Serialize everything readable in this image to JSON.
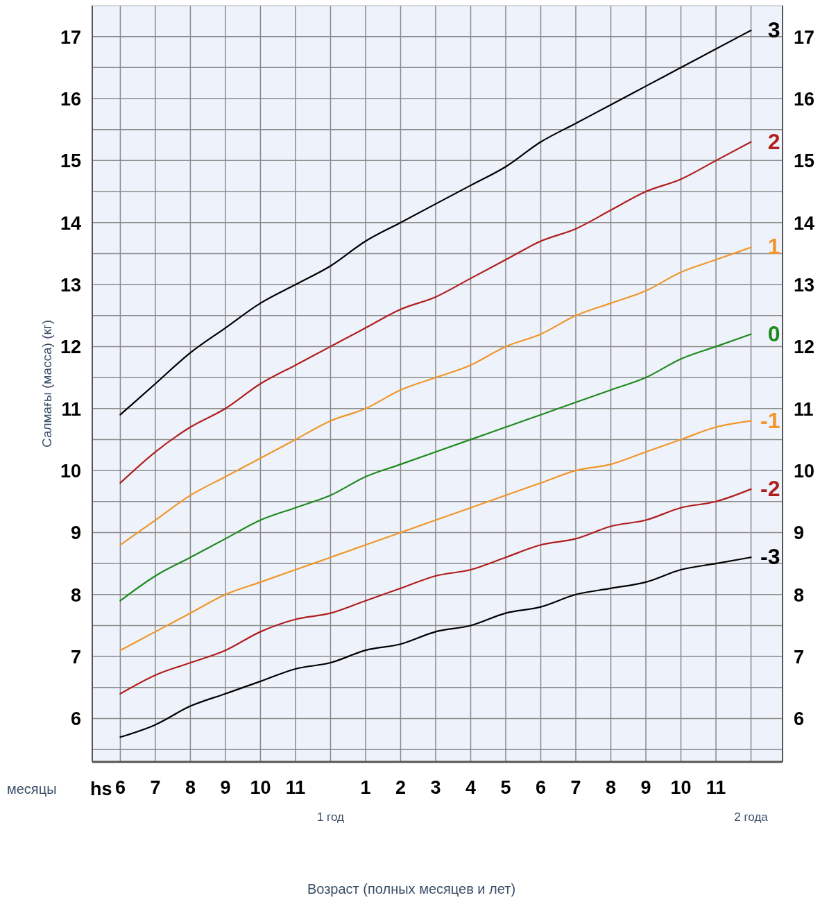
{
  "chart_data": {
    "type": "line",
    "ylabel": "Салмағы (масса) (кг)",
    "annotations": [
      "месяцы",
      "hs",
      "1 год",
      "2 года",
      "Возраст (полных месяцев и лет)"
    ],
    "categories": [
      "6",
      "7",
      "8",
      "9",
      "10",
      "11",
      null,
      "1",
      "2",
      "3",
      "4",
      "5",
      "6",
      "7",
      "8",
      "9",
      "10",
      "11",
      null
    ],
    "ylim": [
      5.3,
      17.5
    ],
    "yticks": [
      {
        "value": 5.5,
        "label": null
      },
      6,
      {
        "value": 6.5,
        "label": null
      },
      7,
      {
        "value": 7.5,
        "label": null
      },
      8,
      {
        "value": 8.5,
        "label": null
      },
      9,
      {
        "value": 9.5,
        "label": null
      },
      10,
      {
        "value": 10.5,
        "label": null
      },
      11,
      {
        "value": 11.5,
        "label": null
      },
      12,
      {
        "value": 12.5,
        "label": null
      },
      13,
      {
        "value": 13.5,
        "label": null
      },
      14,
      {
        "value": 14.5,
        "label": null
      },
      15,
      {
        "value": 15.5,
        "label": null
      },
      16,
      {
        "value": 16.5,
        "label": null
      },
      17
    ],
    "y2lim": [
      5.3,
      17.5
    ],
    "y2ticks": [
      6,
      7,
      8,
      9,
      10,
      11,
      12,
      13,
      14,
      15,
      16,
      17
    ],
    "grid": true,
    "marker": "none",
    "line_style": "solid",
    "series": [
      {
        "name": "3",
        "color": "#000000",
        "values": [
          10.9,
          11.4,
          11.9,
          12.3,
          12.7,
          13.0,
          13.3,
          13.7,
          14.0,
          14.3,
          14.6,
          14.9,
          15.3,
          15.6,
          15.9,
          16.2,
          16.5,
          16.8,
          17.1
        ]
      },
      {
        "name": "2",
        "color": "#b01e1e",
        "values": [
          9.8,
          10.3,
          10.7,
          11.0,
          11.4,
          11.7,
          12.0,
          12.3,
          12.6,
          12.8,
          13.1,
          13.4,
          13.7,
          13.9,
          14.2,
          14.5,
          14.7,
          15.0,
          15.3
        ]
      },
      {
        "name": "1",
        "color": "#f0962a",
        "values": [
          8.8,
          9.2,
          9.6,
          9.9,
          10.2,
          10.5,
          10.8,
          11.0,
          11.3,
          11.5,
          11.7,
          12.0,
          12.2,
          12.5,
          12.7,
          12.9,
          13.2,
          13.4,
          13.6
        ]
      },
      {
        "name": "0",
        "color": "#1e8a1e",
        "values": [
          7.9,
          8.3,
          8.6,
          8.9,
          9.2,
          9.4,
          9.6,
          9.9,
          10.1,
          10.3,
          10.5,
          10.7,
          10.9,
          11.1,
          11.3,
          11.5,
          11.8,
          12.0,
          12.2
        ]
      },
      {
        "name": "-1",
        "color": "#f0962a",
        "values": [
          7.1,
          7.4,
          7.7,
          8.0,
          8.2,
          8.4,
          8.6,
          8.8,
          9.0,
          9.2,
          9.4,
          9.6,
          9.8,
          10.0,
          10.1,
          10.3,
          10.5,
          10.7,
          10.8
        ]
      },
      {
        "name": "-2",
        "color": "#b01e1e",
        "values": [
          6.4,
          6.7,
          6.9,
          7.1,
          7.4,
          7.6,
          7.7,
          7.9,
          8.1,
          8.3,
          8.4,
          8.6,
          8.8,
          8.9,
          9.1,
          9.2,
          9.4,
          9.5,
          9.7
        ]
      },
      {
        "name": "-3",
        "color": "#000000",
        "values": [
          5.7,
          5.9,
          6.2,
          6.4,
          6.6,
          6.8,
          6.9,
          7.1,
          7.2,
          7.4,
          7.5,
          7.7,
          7.8,
          8.0,
          8.1,
          8.2,
          8.4,
          8.5,
          8.6
        ]
      }
    ]
  }
}
